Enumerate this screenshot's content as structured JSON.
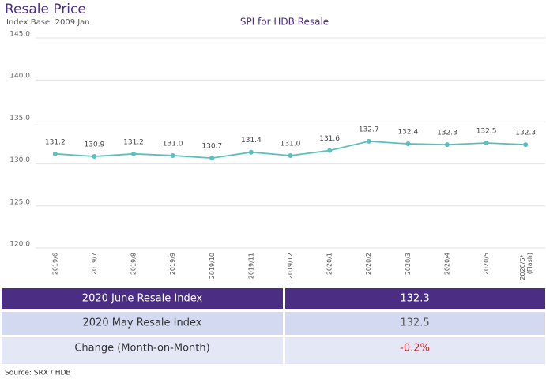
{
  "header": {
    "title": "Resale Price",
    "subtitle": "Index Base: 2009 Jan"
  },
  "chart_data": {
    "type": "line",
    "title": "SPI for HDB Resale",
    "categories": [
      "2019/6",
      "2019/7",
      "2019/8",
      "2019/9",
      "2019/10",
      "2019/11",
      "2019/12",
      "2020/1",
      "2020/2",
      "2020/3",
      "2020/4",
      "2020/5",
      "2020/6* (Flash)"
    ],
    "series": [
      {
        "name": "SPI",
        "color": "#5bbfbf",
        "values": [
          131.2,
          130.9,
          131.2,
          131.0,
          130.7,
          131.4,
          131.0,
          131.6,
          132.7,
          132.4,
          132.3,
          132.5,
          132.3
        ],
        "value_labels": [
          "131.2",
          "130.9",
          "131.2",
          "131.0",
          "130.7",
          "131.4",
          "131.0",
          "131.6",
          "132.7",
          "132.4",
          "132.3",
          "132.5",
          "132.3"
        ]
      }
    ],
    "ylim": [
      120,
      145
    ],
    "yticks": [
      {
        "value": 120,
        "label": "120.0"
      },
      {
        "value": 125,
        "label": "125.0"
      },
      {
        "value": 130,
        "label": "130.0"
      },
      {
        "value": 135,
        "label": "135.0"
      },
      {
        "value": 140,
        "label": "140.0"
      },
      {
        "value": 145,
        "label": "145.0"
      }
    ],
    "grid": true
  },
  "table": {
    "rows": [
      [
        "2020 June Resale Index",
        "132.3"
      ],
      [
        "2020 May Resale Index",
        "132.5"
      ],
      [
        "Change (Month-on-Month)",
        "-0.2%"
      ]
    ]
  },
  "footer": {
    "source": "Source: SRX / HDB"
  }
}
